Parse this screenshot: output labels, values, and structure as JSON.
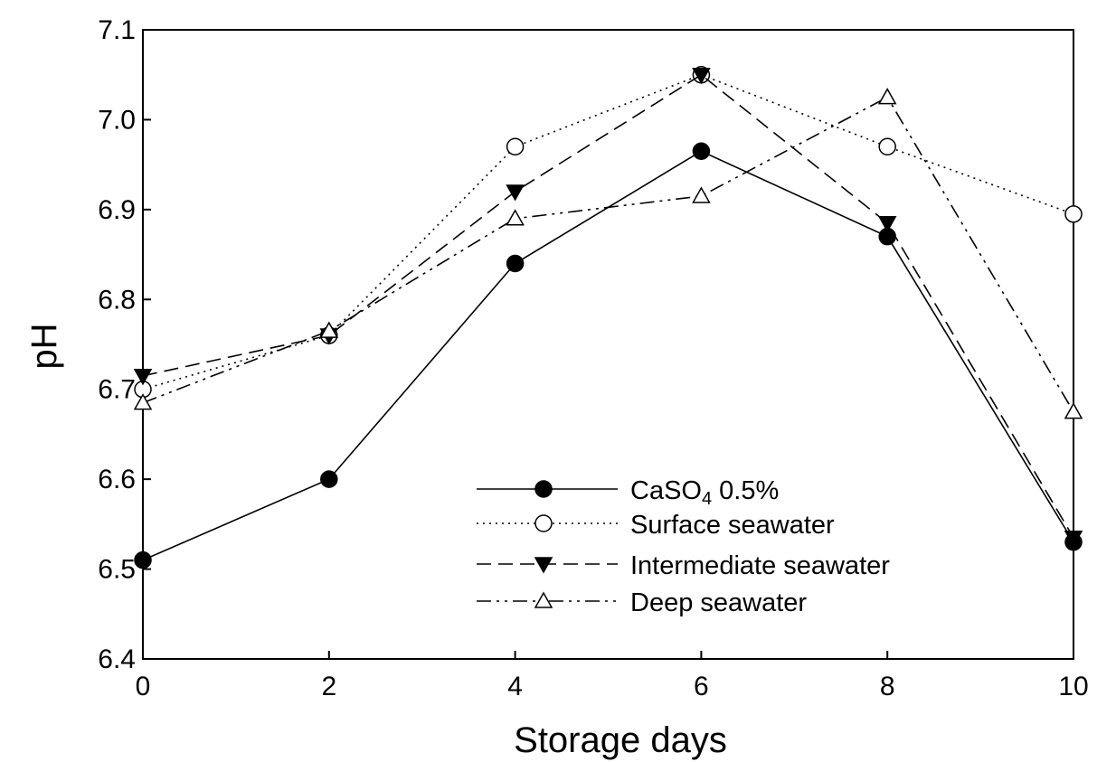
{
  "chart_data": {
    "type": "line",
    "xlabel": "Storage days",
    "ylabel": "pH",
    "xlim": [
      0,
      10
    ],
    "ylim": [
      6.4,
      7.1
    ],
    "x": [
      0,
      2,
      4,
      6,
      8,
      10
    ],
    "x_ticks": [
      "0",
      "2",
      "4",
      "6",
      "8",
      "10"
    ],
    "y_ticks": [
      "6.4",
      "6.5",
      "6.6",
      "6.7",
      "6.8",
      "6.9",
      "7.0",
      "7.1"
    ],
    "grid": false,
    "legend_position": "lower-right",
    "series": [
      {
        "name_main": "CaSO",
        "name_sub": "4",
        "name_rest": " 0.5%",
        "values": [
          6.51,
          6.6,
          6.84,
          6.965,
          6.87,
          6.53
        ],
        "marker": "filled-circle",
        "line_style": "solid"
      },
      {
        "name": "Surface seawater",
        "values": [
          6.7,
          6.76,
          6.97,
          7.05,
          6.97,
          6.895
        ],
        "marker": "open-circle",
        "line_style": "dotted"
      },
      {
        "name": "Intermediate seawater",
        "values": [
          6.715,
          6.76,
          6.92,
          7.05,
          6.885,
          6.535
        ],
        "marker": "filled-triangle-down",
        "line_style": "dashed"
      },
      {
        "name": "Deep seawater",
        "values": [
          6.685,
          6.765,
          6.89,
          6.915,
          7.025,
          6.675
        ],
        "marker": "open-triangle-up",
        "line_style": "dash-dot-dot"
      }
    ]
  }
}
